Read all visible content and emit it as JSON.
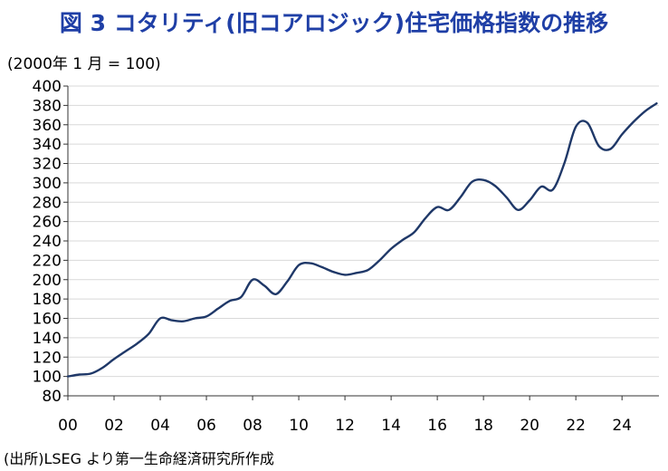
{
  "chart_data": {
    "type": "line",
    "title": "図 3  コタリティ(旧コアロジック)住宅価格指数の推移",
    "unit_label": "(2000年 1 月 = 100)",
    "source": "(出所)LSEG より第一生命経済研究所作成",
    "xlim": [
      2000.0,
      2025.6
    ],
    "ylim": [
      80,
      400
    ],
    "y_ticks": [
      80,
      100,
      120,
      140,
      160,
      180,
      200,
      220,
      240,
      260,
      280,
      300,
      320,
      340,
      360,
      380,
      400
    ],
    "y_tick_labels": [
      "80",
      "100",
      "120",
      "140",
      "160",
      "180",
      "200",
      "220",
      "240",
      "260",
      "280",
      "300",
      "320",
      "340",
      "360",
      "380",
      "400"
    ],
    "x_ticks": [
      2000,
      2002,
      2004,
      2006,
      2008,
      2010,
      2012,
      2014,
      2016,
      2018,
      2020,
      2022,
      2024
    ],
    "x_tick_labels": [
      "00",
      "02",
      "04",
      "06",
      "08",
      "10",
      "12",
      "14",
      "16",
      "18",
      "20",
      "22",
      "24"
    ],
    "grid": "horizontal",
    "colors": {
      "title": "#1f3fa6",
      "line": "#1f3868",
      "grid": "#d9d9d9",
      "axis": "#333333",
      "text": "#000000"
    },
    "series": [
      {
        "name": "",
        "x": [
          2000.0,
          2000.5,
          2001.0,
          2001.5,
          2002.0,
          2002.5,
          2003.0,
          2003.5,
          2004.0,
          2004.5,
          2005.0,
          2005.5,
          2006.0,
          2006.5,
          2007.0,
          2007.5,
          2008.0,
          2008.5,
          2009.0,
          2009.5,
          2010.0,
          2010.5,
          2011.0,
          2011.5,
          2012.0,
          2012.5,
          2013.0,
          2013.5,
          2014.0,
          2014.5,
          2015.0,
          2015.5,
          2016.0,
          2016.5,
          2017.0,
          2017.5,
          2018.0,
          2018.5,
          2019.0,
          2019.5,
          2020.0,
          2020.5,
          2021.0,
          2021.5,
          2022.0,
          2022.5,
          2023.0,
          2023.5,
          2024.0,
          2024.5,
          2025.0,
          2025.5
        ],
        "y": [
          100,
          102,
          103,
          109,
          118,
          126,
          134,
          144,
          160,
          158,
          157,
          160,
          162,
          170,
          178,
          182,
          200,
          194,
          185,
          198,
          215,
          217,
          213,
          208,
          205,
          207,
          210,
          220,
          232,
          241,
          249,
          264,
          275,
          272,
          285,
          301,
          303,
          297,
          285,
          272,
          282,
          296,
          293,
          320,
          358,
          362,
          338,
          335,
          350,
          363,
          374,
          382
        ]
      }
    ]
  }
}
